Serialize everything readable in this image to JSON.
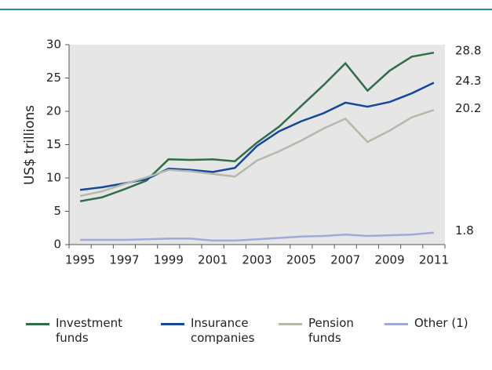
{
  "chart_data": {
    "type": "line",
    "y_label": "US$ trillions",
    "categories": [
      "1995",
      null,
      "1997",
      null,
      "1999",
      null,
      "2001",
      null,
      "2003",
      null,
      "2005",
      null,
      "2007",
      null,
      "2009",
      null,
      "2011"
    ],
    "series": [
      {
        "name": "Investment funds",
        "color": "#2f6e48",
        "values": [
          6.5,
          7.1,
          8.3,
          9.6,
          12.8,
          12.7,
          12.8,
          12.5,
          15.3,
          17.7,
          20.8,
          23.9,
          27.2,
          23.1,
          26.1,
          28.2,
          28.8
        ]
      },
      {
        "name": "Insurance companies",
        "color": "#17479b",
        "values": [
          8.2,
          8.6,
          9.2,
          9.8,
          11.4,
          11.2,
          10.9,
          11.5,
          14.8,
          17.0,
          18.5,
          19.7,
          21.3,
          20.7,
          21.4,
          22.7,
          24.3
        ]
      },
      {
        "name": "Pension funds",
        "color": "#b4b9aa",
        "values": [
          7.3,
          8.0,
          9.1,
          10.1,
          11.2,
          11.0,
          10.6,
          10.2,
          12.6,
          14.0,
          15.6,
          17.4,
          18.9,
          15.4,
          17.1,
          19.1,
          20.2
        ]
      },
      {
        "name": "Other (1)",
        "color": "#a0a9d8",
        "values": [
          0.7,
          0.7,
          0.7,
          0.8,
          0.9,
          0.9,
          0.6,
          0.6,
          0.8,
          1.0,
          1.2,
          1.3,
          1.5,
          1.3,
          1.4,
          1.5,
          1.8
        ]
      }
    ],
    "ylim": [
      0,
      30
    ],
    "yticks": [
      0,
      5,
      10,
      15,
      20,
      25,
      30
    ]
  }
}
